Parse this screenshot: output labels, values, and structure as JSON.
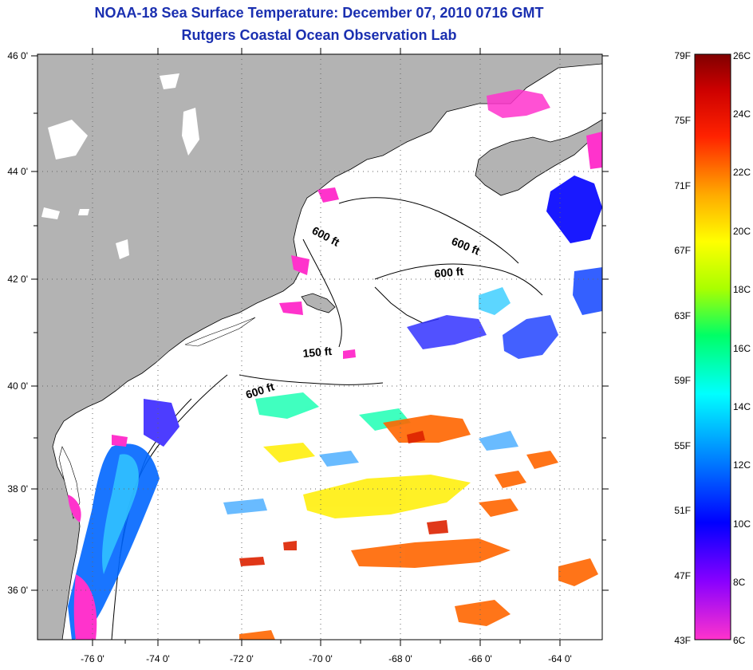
{
  "title_line1": "NOAA-18 Sea Surface Temperature:  December 07, 2010 0716 GMT",
  "title_line2": "Rutgers Coastal Ocean Observation Lab",
  "map": {
    "lat_labels": [
      "46 0'",
      "44 0'",
      "42 0'",
      "40 0'",
      "38 0'",
      "36 0'"
    ],
    "lon_labels": [
      "-76 0'",
      "-74 0'",
      "-72 0'",
      "-70 0'",
      "-68 0'",
      "-66 0'",
      "-64 0'"
    ],
    "contour_labels": [
      "600 ft",
      "600 ft",
      "600 ft",
      "150 ft",
      "600 ft"
    ],
    "colors": {
      "land": "#b3b3b3",
      "water_nodata": "#ffffff",
      "coast": "#000000",
      "grid": "#666666"
    }
  },
  "colorbar": {
    "f_labels": [
      "79F",
      "75F",
      "71F",
      "67F",
      "63F",
      "59F",
      "55F",
      "51F",
      "47F",
      "43F"
    ],
    "c_labels": [
      "26C",
      "24C",
      "22C",
      "20C",
      "18C",
      "16C",
      "14C",
      "12C",
      "10C",
      "8C",
      "6C"
    ],
    "gradient": [
      "#ff33cc",
      "#8800ff",
      "#0000ff",
      "#0077ff",
      "#00ffff",
      "#00ff66",
      "#aaff00",
      "#ffff00",
      "#ffaa00",
      "#ff2200",
      "#cc0000",
      "#800000"
    ]
  }
}
